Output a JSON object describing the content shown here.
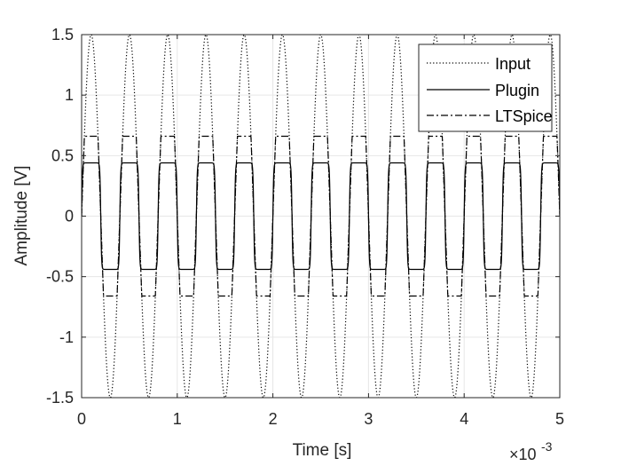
{
  "chart_data": {
    "type": "line",
    "xlabel": "Time [s]",
    "ylabel": "Amplitude [V]",
    "x_exponent_label": "×10",
    "x_exponent_power": "-3",
    "xlim": [
      0,
      5
    ],
    "ylim": [
      -1.5,
      1.5
    ],
    "xticks": [
      "0",
      "1",
      "2",
      "3",
      "4",
      "5"
    ],
    "yticks": [
      "-1.5",
      "-1",
      "-0.5",
      "0",
      "0.5",
      "1",
      "1.5"
    ],
    "grid": true,
    "legend_position": "top-right",
    "signal_frequency_hz": 2500,
    "series": [
      {
        "name": "Input",
        "style": "dotted",
        "form": "sine",
        "amplitude": 1.5,
        "color": "#000000"
      },
      {
        "name": "Plugin",
        "style": "solid",
        "form": "soft-clipped sine",
        "amplitude": 0.44,
        "color": "#000000"
      },
      {
        "name": "LTSpice",
        "style": "dashdot",
        "form": "hard-clipped sine",
        "amplitude": 0.66,
        "color": "#000000"
      }
    ]
  }
}
